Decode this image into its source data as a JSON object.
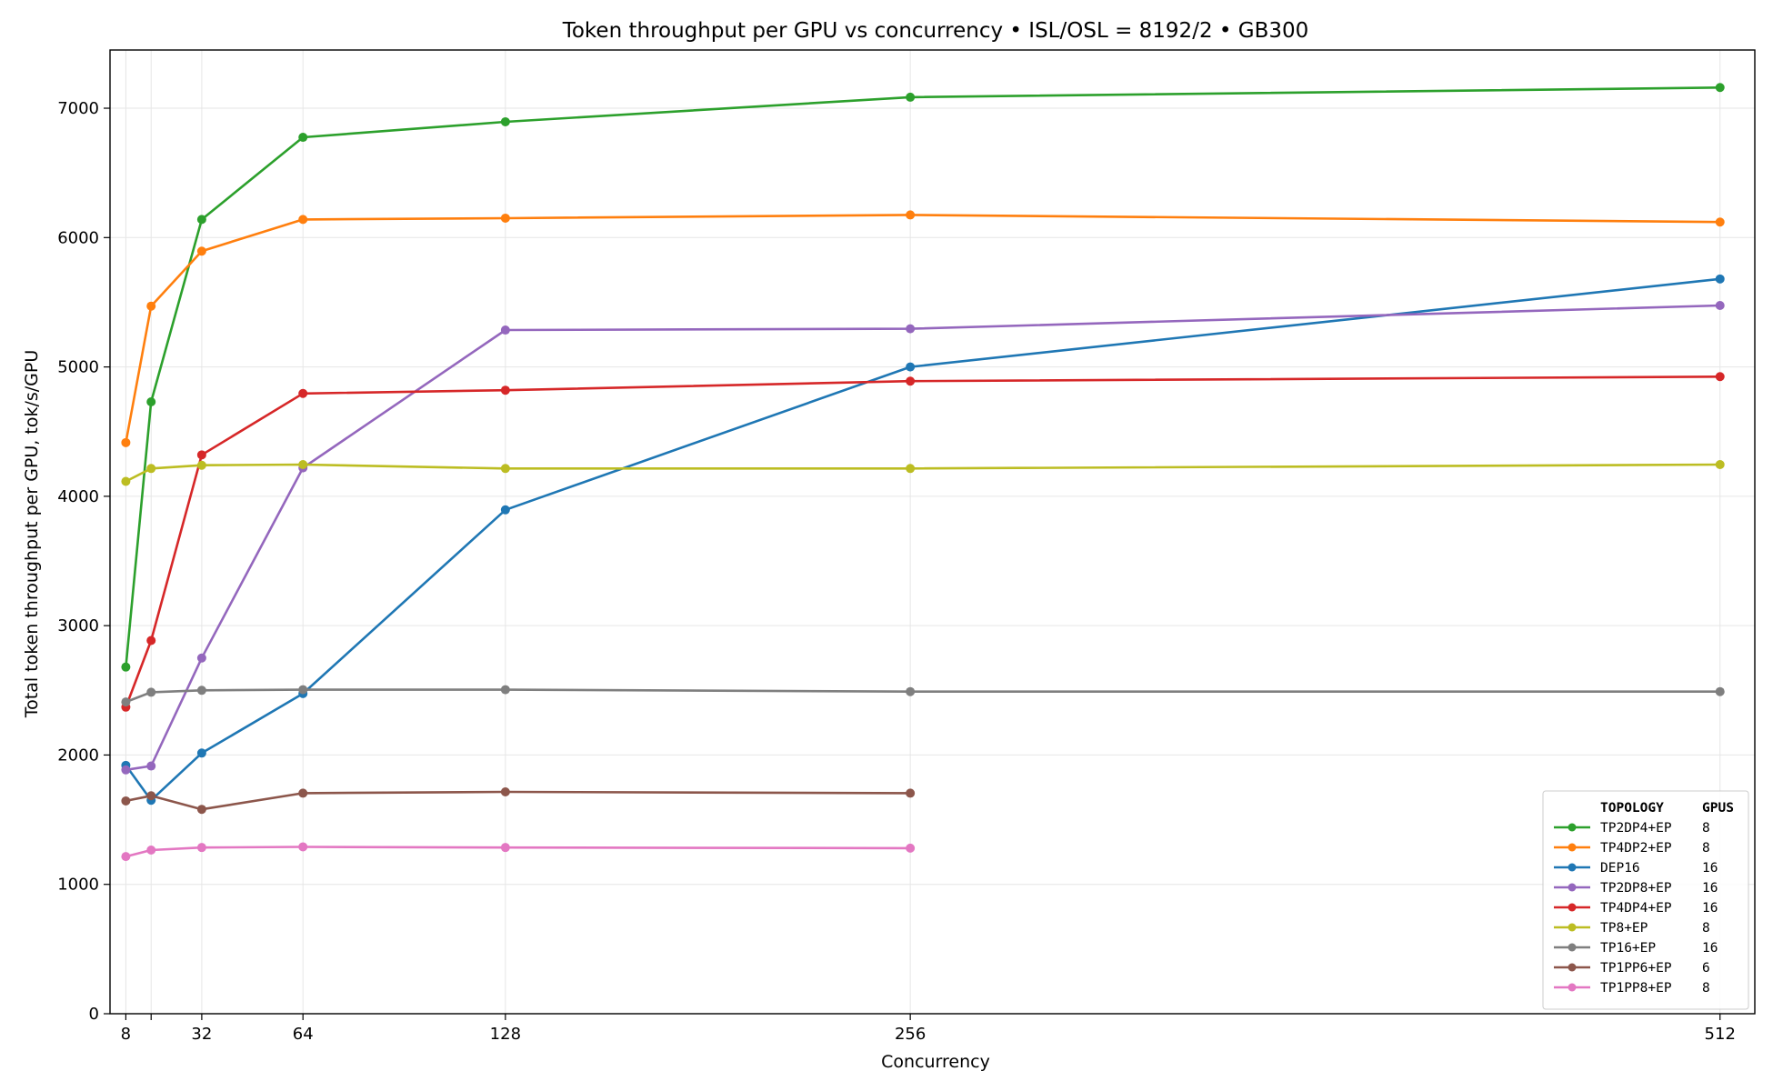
{
  "chart_data": {
    "type": "line",
    "title": "Token throughput per GPU vs concurrency • ISL/OSL = 8192/2 • GB300",
    "xlabel": "Concurrency",
    "ylabel": "Total token throughput per GPU, tok/s/GPU",
    "x": [
      8,
      16,
      32,
      64,
      128,
      256,
      512
    ],
    "xticks": [
      8,
      16,
      32,
      64,
      128,
      256,
      512
    ],
    "xtick_labels": [
      "8",
      "",
      "32",
      "64",
      "128",
      "256",
      "512"
    ],
    "xlim": [
      3,
      523
    ],
    "ylim": [
      0,
      7450
    ],
    "yticks": [
      0,
      1000,
      2000,
      3000,
      4000,
      5000,
      6000,
      7000
    ],
    "grid": true,
    "legend": {
      "placement": "bottom-right",
      "header_topology": "TOPOLOGY",
      "header_gpus": "GPUS"
    },
    "series": [
      {
        "name": "TP2DP4+EP",
        "gpus": "8",
        "color": "#2ca02c",
        "x": [
          8,
          16,
          32,
          64,
          128,
          256,
          512
        ],
        "values": [
          2680,
          4730,
          6140,
          6775,
          6895,
          7085,
          7160
        ]
      },
      {
        "name": "TP4DP2+EP",
        "gpus": "8",
        "color": "#ff7f0e",
        "x": [
          8,
          16,
          32,
          64,
          128,
          256,
          512
        ],
        "values": [
          4415,
          5470,
          5895,
          6140,
          6150,
          6175,
          6120
        ]
      },
      {
        "name": "DEP16",
        "gpus": "16",
        "color": "#1f77b4",
        "x": [
          8,
          16,
          32,
          64,
          128,
          256,
          512
        ],
        "values": [
          1920,
          1650,
          2015,
          2475,
          3895,
          5000,
          5680
        ]
      },
      {
        "name": "TP2DP8+EP",
        "gpus": "16",
        "color": "#9467bd",
        "x": [
          8,
          16,
          32,
          64,
          128,
          256,
          512
        ],
        "values": [
          1885,
          1915,
          2750,
          4220,
          5285,
          5295,
          5475
        ]
      },
      {
        "name": "TP4DP4+EP",
        "gpus": "16",
        "color": "#d62728",
        "x": [
          8,
          16,
          32,
          64,
          128,
          256,
          512
        ],
        "values": [
          2370,
          2885,
          4320,
          4795,
          4820,
          4890,
          4925
        ]
      },
      {
        "name": "TP8+EP",
        "gpus": "8",
        "color": "#bcbd22",
        "x": [
          8,
          16,
          32,
          64,
          128,
          256,
          512
        ],
        "values": [
          4115,
          4215,
          4240,
          4245,
          4215,
          4215,
          4245
        ]
      },
      {
        "name": "TP16+EP",
        "gpus": "16",
        "color": "#7f7f7f",
        "x": [
          8,
          16,
          32,
          64,
          128,
          256,
          512
        ],
        "values": [
          2410,
          2485,
          2500,
          2505,
          2505,
          2490,
          2490
        ]
      },
      {
        "name": "TP1PP6+EP",
        "gpus": "6",
        "color": "#8c564b",
        "x": [
          8,
          16,
          32,
          64,
          128,
          256
        ],
        "values": [
          1645,
          1685,
          1580,
          1705,
          1715,
          1705
        ]
      },
      {
        "name": "TP1PP8+EP",
        "gpus": "8",
        "color": "#e377c2",
        "x": [
          8,
          16,
          32,
          64,
          128,
          256
        ],
        "values": [
          1215,
          1265,
          1285,
          1290,
          1285,
          1280
        ]
      }
    ]
  }
}
